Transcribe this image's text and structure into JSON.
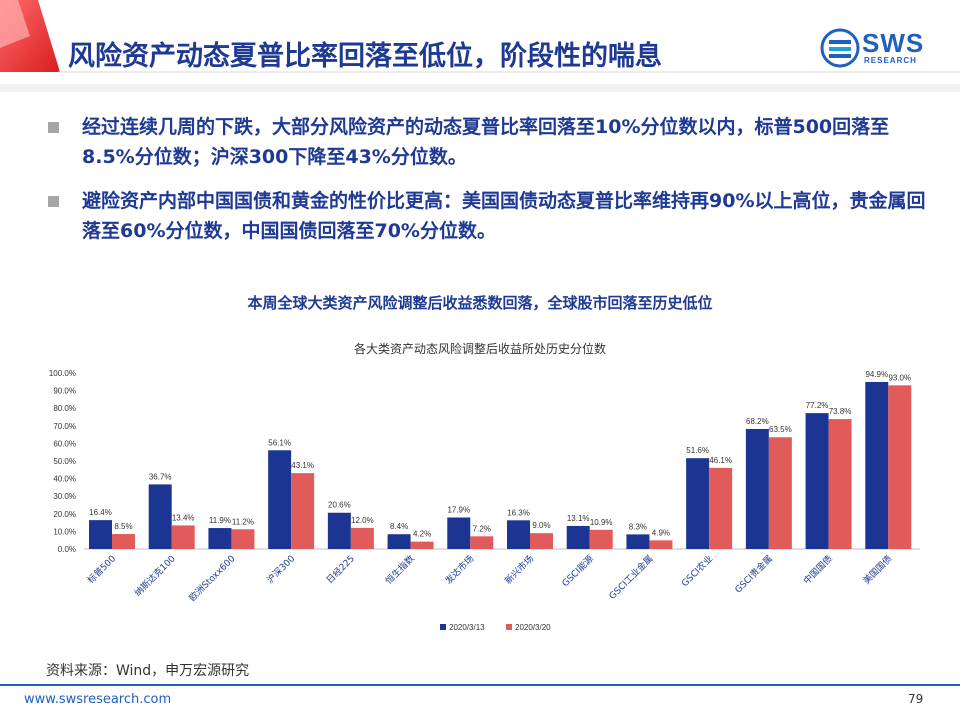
{
  "header": {
    "title": "风险资产动态夏普比率回落至低位，阶段性的喘息",
    "logo_text": "SWS",
    "logo_sub": "RESEARCH"
  },
  "bullets": [
    "经过连续几周的下跌，大部分风险资产的动态夏普比率回落至10%分位数以内，标普500回落至8.5%分位数；沪深300下降至43%分位数。",
    "避险资产内部中国国债和黄金的性价比更高：美国国债动态夏普比率维持再90%以上高位，贵金属回落至60%分位数，中国国债回落至70%分位数。"
  ],
  "chart_heading": "本周全球大类资产风险调整后收益悉数回落，全球股市回落至历史低位",
  "chart_data": {
    "type": "bar",
    "title": "各大类资产动态风险调整后收益所处历史分位数",
    "categories": [
      "标普500",
      "纳斯达克100",
      "欧洲Stoxx600",
      "沪深300",
      "日经225",
      "恒生指数",
      "发达市场",
      "新兴市场",
      "GSCI能源",
      "GSCI工业金属",
      "GSCI农业",
      "GSCI贵金属",
      "中国国债",
      "美国国债"
    ],
    "series": [
      {
        "name": "2020/3/13",
        "color": "#1c3592",
        "values": [
          16.4,
          36.7,
          11.9,
          56.1,
          20.6,
          8.4,
          17.9,
          16.3,
          13.1,
          8.3,
          51.6,
          68.2,
          77.2,
          94.9
        ]
      },
      {
        "name": "2020/3/20",
        "color": "#e25b5b",
        "values": [
          8.5,
          13.4,
          11.2,
          43.1,
          12.0,
          4.2,
          7.2,
          9.0,
          10.9,
          4.9,
          46.1,
          63.5,
          73.8,
          93.0
        ]
      }
    ],
    "y_ticks": [
      "0.0%",
      "10.0%",
      "20.0%",
      "30.0%",
      "40.0%",
      "50.0%",
      "60.0%",
      "70.0%",
      "80.0%",
      "90.0%",
      "100.0%"
    ],
    "ylim": [
      0,
      100
    ],
    "legend_position": "bottom-center",
    "grid": false
  },
  "source": "资料来源：Wind，申万宏源研究",
  "footer": {
    "url": "www.swsresearch.com",
    "page": "79"
  }
}
